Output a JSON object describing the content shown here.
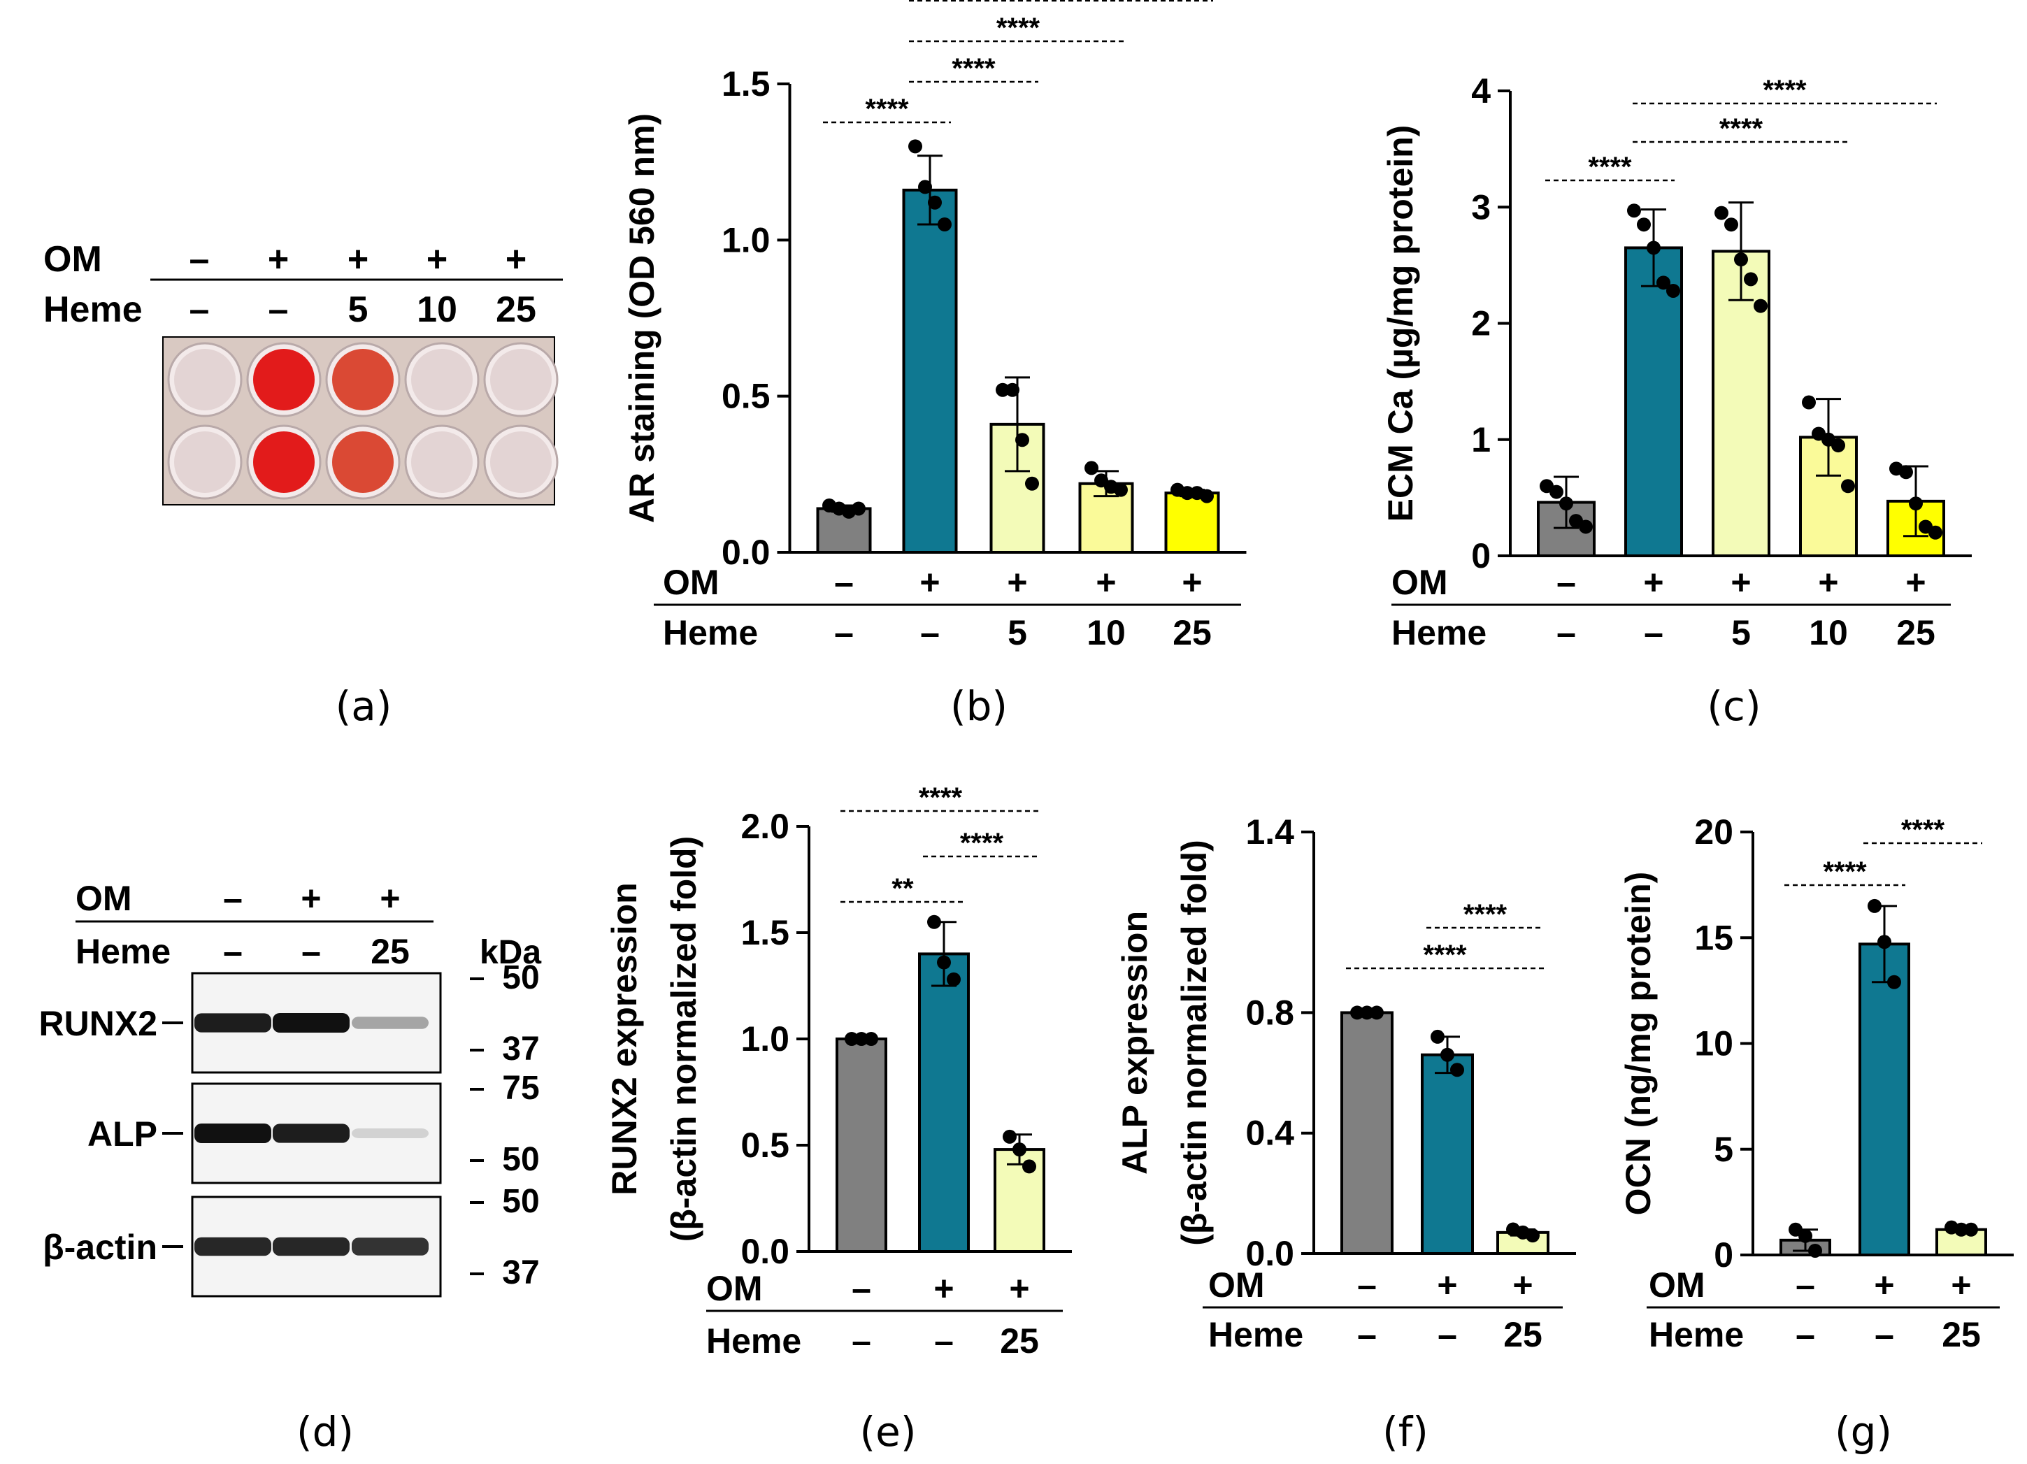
{
  "panel_labels": {
    "a": "(a)",
    "b": "(b)",
    "c": "(c)",
    "d": "(d)",
    "e": "(e)",
    "f": "(f)",
    "g": "(g)"
  },
  "conditions": {
    "row_om": "OM",
    "row_heme": "Heme",
    "five": {
      "om": [
        "–",
        "+",
        "+",
        "+",
        "+"
      ],
      "heme": [
        "–",
        "–",
        "5",
        "10",
        "25"
      ]
    },
    "three": {
      "om": [
        "–",
        "+",
        "+"
      ],
      "heme": [
        "–",
        "–",
        "25"
      ]
    }
  },
  "panel_a": {
    "description_colors": {
      "plate_bg": "#d9c9c2",
      "strong_red": "#e01010",
      "medium_red": "#d8402a",
      "pale": "#e2d3d3"
    },
    "wells_top": [
      "pale",
      "strong_red",
      "medium_red",
      "pale",
      "pale"
    ],
    "wells_bottom": [
      "pale",
      "strong_red",
      "medium_red",
      "pale",
      "pale"
    ]
  },
  "panel_d": {
    "kda_label": "kDa",
    "bands": [
      {
        "label": "RUNX2",
        "markers": [
          "50",
          "37"
        ],
        "intensity": [
          0.95,
          1.0,
          0.35
        ]
      },
      {
        "label": "ALP",
        "markers": [
          "75",
          "50"
        ],
        "intensity": [
          1.0,
          0.95,
          0.12
        ]
      },
      {
        "label": "β-actin",
        "markers": [
          "50",
          "37"
        ],
        "intensity": [
          0.9,
          0.9,
          0.85
        ]
      }
    ]
  },
  "colors": {
    "gray": "#808080",
    "teal": "#0f7891",
    "pale_yellow": "#f3fbb8",
    "light_yellow": "#fafa99",
    "yellow": "#ffff00"
  },
  "chart_data": [
    {
      "id": "b",
      "type": "bar",
      "categories": [
        "–/–",
        "+/–",
        "+/5",
        "+/10",
        "+/25"
      ],
      "values": [
        0.14,
        1.16,
        0.41,
        0.22,
        0.19
      ],
      "errors": [
        0.01,
        0.11,
        0.15,
        0.04,
        0.01
      ],
      "points": [
        [
          0.15,
          0.14,
          0.13,
          0.14
        ],
        [
          1.3,
          1.17,
          1.12,
          1.05
        ],
        [
          0.52,
          0.52,
          0.36,
          0.22
        ],
        [
          0.27,
          0.23,
          0.21,
          0.2
        ],
        [
          0.2,
          0.19,
          0.19,
          0.18
        ]
      ],
      "ylabel": "AR staining (OD 560 nm)",
      "ylim": [
        0,
        1.5
      ],
      "yticks": [
        "0.0",
        "0.5",
        "1.0",
        "1.5"
      ],
      "significance": [
        {
          "from": 0,
          "to": 1,
          "label": "****"
        },
        {
          "from": 1,
          "to": 2,
          "label": "****"
        },
        {
          "from": 1,
          "to": 3,
          "label": "****"
        },
        {
          "from": 1,
          "to": 4,
          "label": "****"
        }
      ]
    },
    {
      "id": "c",
      "type": "bar",
      "categories": [
        "–/–",
        "+/–",
        "+/5",
        "+/10",
        "+/25"
      ],
      "values": [
        0.46,
        2.65,
        2.62,
        1.02,
        0.47
      ],
      "errors": [
        0.22,
        0.33,
        0.42,
        0.33,
        0.3
      ],
      "points": [
        [
          0.6,
          0.55,
          0.45,
          0.3,
          0.25
        ],
        [
          2.97,
          2.85,
          2.65,
          2.35,
          2.28
        ],
        [
          2.95,
          2.85,
          2.55,
          2.38,
          2.15
        ],
        [
          1.32,
          1.05,
          1.0,
          0.95,
          0.6
        ],
        [
          0.75,
          0.72,
          0.45,
          0.25,
          0.2
        ]
      ],
      "ylabel": "ECM Ca (µg/mg protein)",
      "ylim": [
        0,
        4
      ],
      "yticks": [
        "0",
        "1",
        "2",
        "3",
        "4"
      ],
      "significance": [
        {
          "from": 0,
          "to": 1,
          "label": "****"
        },
        {
          "from": 1,
          "to": 3,
          "label": "****"
        },
        {
          "from": 1,
          "to": 4,
          "label": "****"
        }
      ]
    },
    {
      "id": "e",
      "type": "bar",
      "categories": [
        "–/–",
        "+/–",
        "+/25"
      ],
      "values": [
        1.0,
        1.4,
        0.48
      ],
      "errors": [
        0.0,
        0.15,
        0.07
      ],
      "points": [
        [
          1.0,
          1.0,
          1.0
        ],
        [
          1.55,
          1.36,
          1.28
        ],
        [
          0.54,
          0.48,
          0.4
        ]
      ],
      "ylabel": "RUNX2 expression",
      "ylabel2": "(β-actin normalized fold)",
      "ylim": [
        0,
        2.0
      ],
      "yticks": [
        "0.0",
        "0.5",
        "1.0",
        "1.5",
        "2.0"
      ],
      "significance": [
        {
          "from": 0,
          "to": 1,
          "label": "**"
        },
        {
          "from": 1,
          "to": 2,
          "label": "****"
        },
        {
          "from": 0,
          "to": 2,
          "label": "****"
        }
      ]
    },
    {
      "id": "f",
      "type": "bar",
      "categories": [
        "–/–",
        "+/–",
        "+/25"
      ],
      "values": [
        0.8,
        0.66,
        0.07
      ],
      "errors": [
        0.0,
        0.06,
        0.01
      ],
      "points": [
        [
          0.8,
          0.8,
          0.8
        ],
        [
          0.72,
          0.66,
          0.61
        ],
        [
          0.08,
          0.07,
          0.06
        ]
      ],
      "ylabel": "ALP expression",
      "ylabel2": "(β-actin normalized fold)",
      "ylim": [
        0,
        1.4
      ],
      "yticks": [
        "0.0",
        "0.4",
        "0.8",
        "1.4"
      ],
      "ytick_values": [
        0,
        0.4,
        0.8,
        1.4
      ],
      "significance": [
        {
          "from": 0,
          "to": 2,
          "label": "****"
        },
        {
          "from": 1,
          "to": 2,
          "label": "****"
        }
      ]
    },
    {
      "id": "g",
      "type": "bar",
      "categories": [
        "–/–",
        "+/–",
        "+/25"
      ],
      "values": [
        0.7,
        14.7,
        1.2
      ],
      "errors": [
        0.5,
        1.8,
        0.1
      ],
      "points": [
        [
          1.2,
          0.9,
          0.2
        ],
        [
          16.5,
          14.8,
          12.9
        ],
        [
          1.3,
          1.2,
          1.2
        ]
      ],
      "ylabel": "OCN (ng/mg protein)",
      "ylim": [
        0,
        20
      ],
      "yticks": [
        "0",
        "5",
        "10",
        "15",
        "20"
      ],
      "significance": [
        {
          "from": 0,
          "to": 1,
          "label": "****"
        },
        {
          "from": 1,
          "to": 2,
          "label": "****"
        }
      ]
    }
  ]
}
